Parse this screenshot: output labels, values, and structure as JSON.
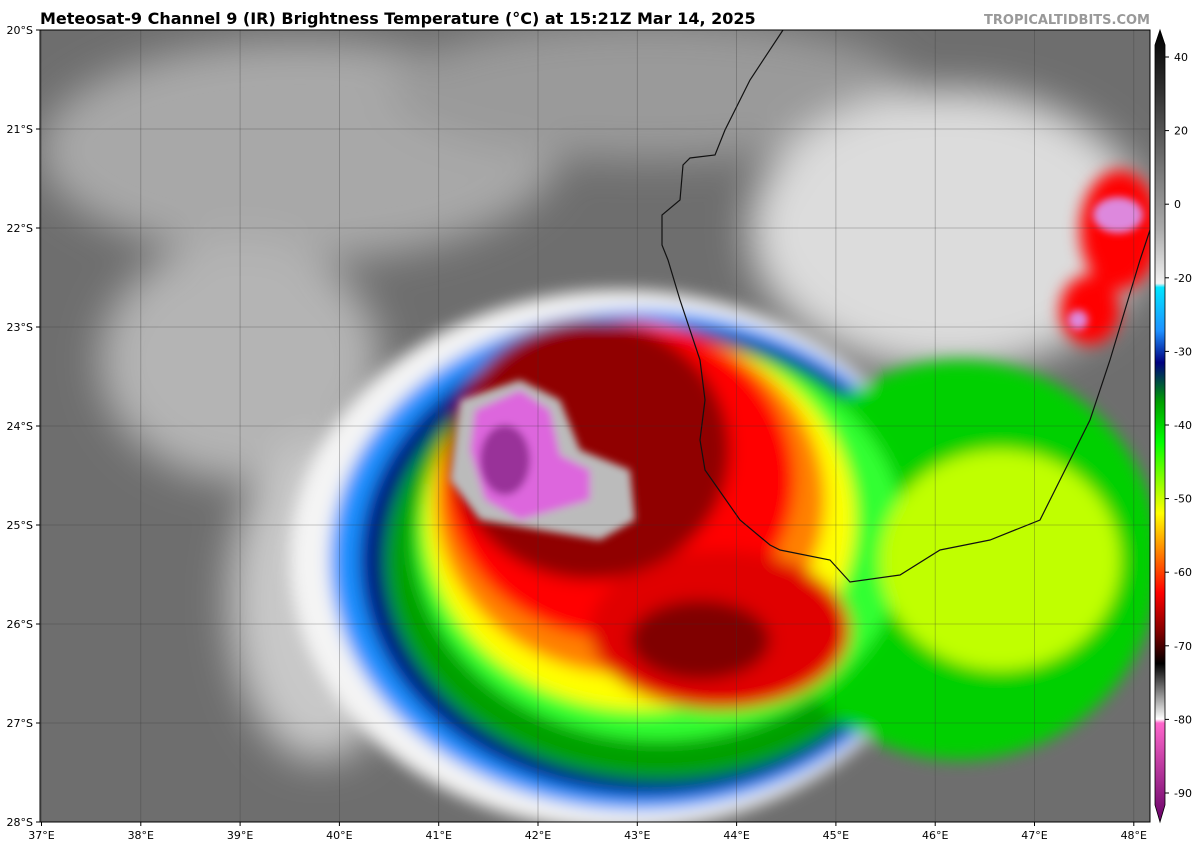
{
  "header": {
    "title": "Meteosat-9 Channel 9 (IR) Brightness Temperature (°C) at 15:21Z Mar 14, 2025",
    "credit": "TROPICALTIDBITS.COM"
  },
  "map": {
    "lat_labels": [
      "20°S",
      "21°S",
      "22°S",
      "23°S",
      "24°S",
      "25°S",
      "26°S",
      "27°S",
      "28°S"
    ],
    "lon_labels": [
      "37°E",
      "38°E",
      "39°E",
      "40°E",
      "41°E",
      "42°E",
      "43°E",
      "44°E",
      "45°E",
      "46°E",
      "47°E",
      "48°E"
    ]
  },
  "colorbar": {
    "ticks": [
      40,
      20,
      0,
      -20,
      -30,
      -40,
      -50,
      -60,
      -70,
      -80,
      -90
    ]
  }
}
